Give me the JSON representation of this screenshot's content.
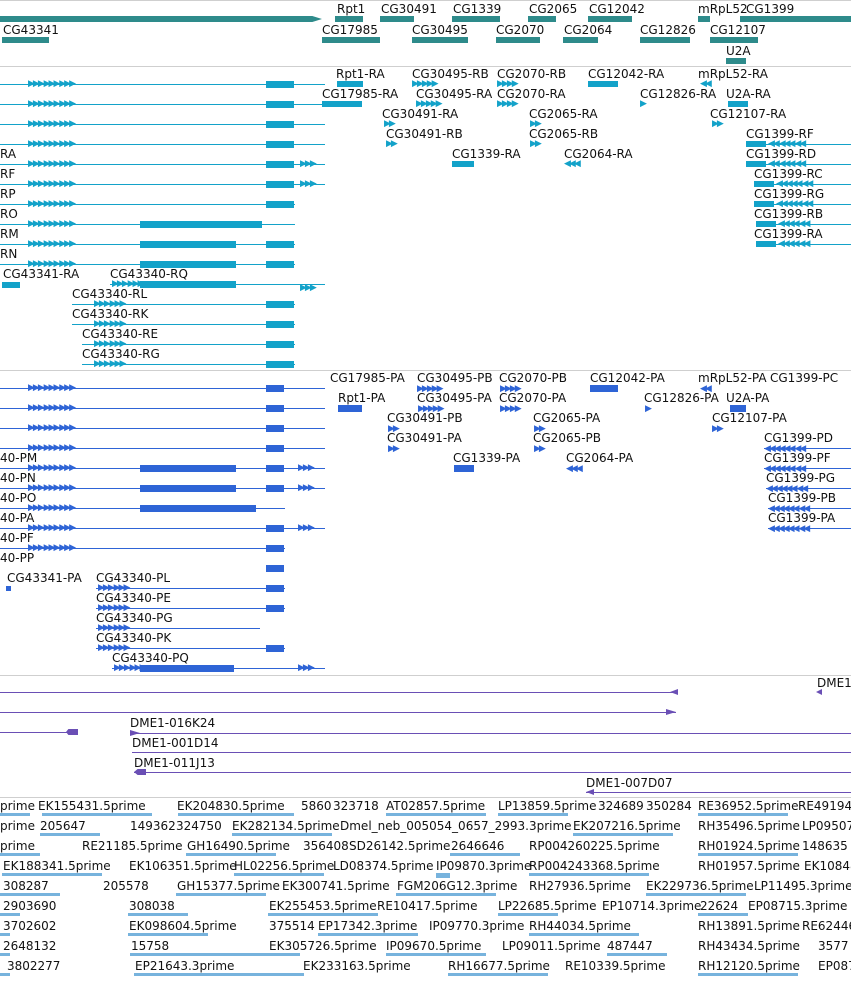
{
  "colors": {
    "gene": "#2e8b8b",
    "rna": "#13a2c9",
    "protein": "#2e64d6",
    "clone": "#6a4fb5",
    "est": "#77b3dd",
    "separator": "#cfcfcf",
    "label": "#111111"
  },
  "tracks": {
    "gene": {
      "labels": [
        "Rpt1",
        "CG30491",
        "CG1339",
        "CG2065",
        "CG12042",
        "mRpL52",
        "CG1399",
        "CG43341",
        "CG17985",
        "CG30495",
        "CG2070",
        "CG2064",
        "CG12826",
        "CG12107",
        "U2A"
      ]
    },
    "rna": {
      "labels": [
        "Rpt1-RA",
        "CG30495-RB",
        "CG2070-RB",
        "CG12042-RA",
        "mRpL52-RA",
        "CG17985-RA",
        "CG30495-RA",
        "CG2070-RA",
        "CG12826-RA",
        "U2A-RA",
        "CG30491-RA",
        "CG2065-RA",
        "CG12107-RA",
        "CG30491-RB",
        "CG2065-RB",
        "CG1399-RF",
        "CG1339-RA",
        "CG2064-RA",
        "CG1399-RD",
        "CG1399-RC",
        "CG1399-RG",
        "CG1399-RB",
        "CG1399-RA",
        "RA",
        "RF",
        "RP",
        "RO",
        "RM",
        "RN",
        "CG43341-RA",
        "CG43340-RQ",
        "CG43340-RL",
        "CG43340-RK",
        "CG43340-RE",
        "CG43340-RG"
      ]
    },
    "protein": {
      "labels": [
        "CG17985-PA",
        "CG30495-PB",
        "CG2070-PB",
        "CG12042-PA",
        "mRpL52-PA",
        "CG1399-PC",
        "Rpt1-PA",
        "CG30495-PA",
        "CG2070-PA",
        "CG12826-PA",
        "U2A-PA",
        "CG30491-PB",
        "CG2065-PA",
        "CG12107-PA",
        "CG30491-PA",
        "CG2065-PB",
        "CG1399-PD",
        "40-PM",
        "CG1339-PA",
        "CG2064-PA",
        "CG1399-PF",
        "40-PN",
        "CG1399-PG",
        "40-PO",
        "CG1399-PB",
        "40-PA",
        "CG1399-PA",
        "40-PF",
        "40-PP",
        "CG43341-PA",
        "CG43340-PL",
        "CG43340-PE",
        "CG43340-PG",
        "CG43340-PK",
        "CG43340-PQ"
      ]
    },
    "clone": {
      "labels": [
        "DME1",
        "DME1-016K24",
        "DME1-001D14",
        "DME1-011J13",
        "DME1-007D07"
      ]
    },
    "est": {
      "rows": [
        [
          "prime",
          "EK155431.5prime",
          "EK204830.5prime",
          "5860",
          "323718",
          "AT02857.5prime",
          "LP13859.5prime",
          "324689",
          "350284",
          "RE36952.5prime",
          "RE49194"
        ],
        [
          "prime",
          "205647",
          "149362",
          "324750",
          "EK282134.5prime",
          "Dmel_neb_005054_0657_2993.3prime",
          "EK207216.5prime",
          "RH35496.5prime",
          "LP09507"
        ],
        [
          "prime",
          "RE21185.5prime",
          "GH16490.5prime",
          "356408",
          "SD26142.5prime",
          "2646646",
          "RP004260225.5prime",
          "RH01924.5prime",
          "148635"
        ],
        [
          "EK188341.5prime",
          "EK106351.5prime",
          "HL02256.5prime",
          "LD08374.5prime",
          "IP09870.3prime",
          "RP004243368.5prime",
          "RH01957.5prime",
          "EK10848"
        ],
        [
          "308287",
          "205578",
          "GH15377.5prime",
          "EK300741.5prime",
          "FGM206G12.3prime",
          "RH27936.5prime",
          "EK229736.5prime",
          "LP11495.3prime"
        ],
        [
          "2903690",
          "308038",
          "EK255453.5prime",
          "RE10417.5prime",
          "LP22685.5prime",
          "EP10714.3prime",
          "22624",
          "EP08715.3prime"
        ],
        [
          "3702602",
          "EK098604.5prime",
          "375514",
          "EP17342.3prime",
          "IP09770.3prime",
          "RH44034.5prime",
          "RH13891.5prime",
          "RE62446"
        ],
        [
          "2648132",
          "15758",
          "EK305726.5prime",
          "IP09670.5prime",
          "LP09011.5prime",
          "487447",
          "RH43434.5prime",
          "3577"
        ],
        [
          "3802277",
          "EP21643.3prime",
          "EK233163.5prime",
          "RH16677.5prime",
          "RE10339.5prime",
          "RH12120.5prime",
          "EP087"
        ]
      ]
    }
  }
}
